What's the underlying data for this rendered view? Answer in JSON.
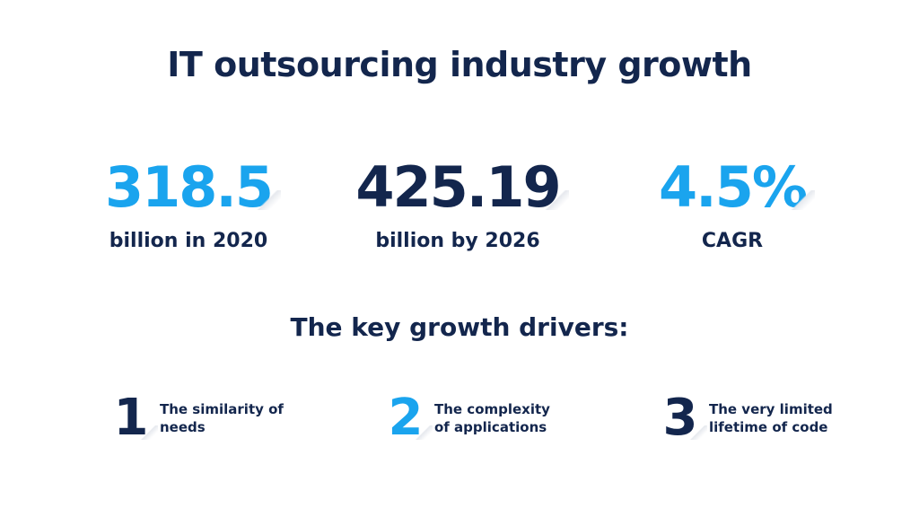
{
  "title": "IT outsourcing industry growth",
  "stats": [
    {
      "value": "318.5",
      "caption": "billion in 2020"
    },
    {
      "value": "425.19",
      "caption": "billion by 2026"
    },
    {
      "value": "4.5%",
      "caption": "CAGR"
    }
  ],
  "drivers_heading": "The key growth drivers:",
  "drivers": [
    {
      "number": "1",
      "line1": "The similarity of",
      "line2": "needs"
    },
    {
      "number": "2",
      "line1": "The complexity",
      "line2": "of applications"
    },
    {
      "number": "3",
      "line1": "The very limited",
      "line2": "lifetime of code"
    }
  ],
  "colors": {
    "navy": "#13264d",
    "blue": "#1aa4ee"
  }
}
